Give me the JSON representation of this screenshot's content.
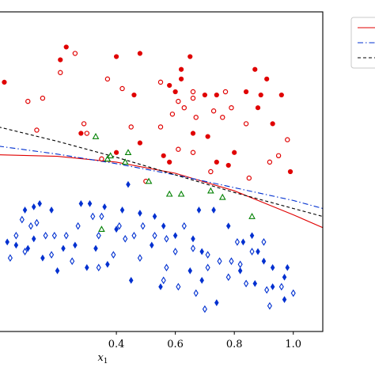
{
  "chart_data": {
    "type": "scatter",
    "title": "",
    "xlabel": "x",
    "xlabel_subscript": "1",
    "xlim": [
      0.0,
      1.1
    ],
    "ylim": [
      0.0,
      1.0
    ],
    "x_ticks": [
      0.4,
      0.6,
      0.8,
      1.0
    ],
    "x_tick_labels": [
      "0.4",
      "0.6",
      "0.8",
      "1.0"
    ],
    "grid": false,
    "legend_placement": "outside-top-right",
    "series": [
      {
        "marker": "circle-filled",
        "color": "#e00000",
        "points": [
          [
            0.23,
            0.89
          ],
          [
            0.21,
            0.85
          ],
          [
            0.02,
            0.78
          ],
          [
            0.4,
            0.86
          ],
          [
            0.48,
            0.87
          ],
          [
            0.62,
            0.82
          ],
          [
            0.65,
            0.86
          ],
          [
            0.91,
            0.79
          ],
          [
            0.87,
            0.82
          ],
          [
            0.84,
            0.75
          ],
          [
            0.96,
            0.74
          ],
          [
            0.58,
            0.77
          ],
          [
            0.6,
            0.75
          ],
          [
            0.62,
            0.79
          ],
          [
            0.46,
            0.74
          ],
          [
            0.74,
            0.74
          ],
          [
            0.7,
            0.74
          ],
          [
            0.88,
            0.7
          ],
          [
            0.89,
            0.74
          ],
          [
            0.93,
            0.65
          ],
          [
            0.66,
            0.62
          ],
          [
            0.48,
            0.59
          ],
          [
            0.28,
            0.62
          ],
          [
            0.4,
            0.56
          ],
          [
            0.56,
            0.55
          ],
          [
            0.58,
            0.53
          ],
          [
            0.74,
            0.53
          ],
          [
            0.78,
            0.52
          ],
          [
            0.8,
            0.56
          ],
          [
            0.71,
            0.61
          ],
          [
            0.99,
            0.5
          ]
        ]
      },
      {
        "marker": "circle-open",
        "color": "#e00000",
        "points": [
          [
            0.26,
            0.87
          ],
          [
            0.21,
            0.81
          ],
          [
            0.37,
            0.79
          ],
          [
            0.42,
            0.76
          ],
          [
            0.55,
            0.78
          ],
          [
            0.61,
            0.72
          ],
          [
            0.67,
            0.67
          ],
          [
            0.73,
            0.69
          ],
          [
            0.76,
            0.67
          ],
          [
            0.84,
            0.65
          ],
          [
            0.98,
            0.6
          ],
          [
            0.95,
            0.55
          ],
          [
            0.92,
            0.53
          ],
          [
            0.79,
            0.7
          ],
          [
            0.77,
            0.75
          ],
          [
            0.66,
            0.75
          ],
          [
            0.66,
            0.73
          ],
          [
            0.55,
            0.64
          ],
          [
            0.45,
            0.64
          ],
          [
            0.29,
            0.65
          ],
          [
            0.15,
            0.73
          ],
          [
            0.1,
            0.72
          ],
          [
            0.63,
            0.7
          ],
          [
            0.59,
            0.68
          ],
          [
            0.85,
            0.48
          ],
          [
            0.61,
            0.57
          ],
          [
            0.66,
            0.56
          ],
          [
            0.5,
            0.47
          ],
          [
            0.3,
            0.62
          ],
          [
            0.72,
            0.5
          ],
          [
            0.35,
            0.54
          ],
          [
            0.13,
            0.63
          ]
        ]
      },
      {
        "marker": "triangle-open",
        "color": "#008000",
        "points": [
          [
            0.37,
            0.54
          ],
          [
            0.43,
            0.53
          ],
          [
            0.44,
            0.56
          ],
          [
            0.33,
            0.61
          ],
          [
            0.38,
            0.55
          ],
          [
            0.51,
            0.47
          ],
          [
            0.35,
            0.32
          ],
          [
            0.58,
            0.43
          ],
          [
            0.62,
            0.43
          ],
          [
            0.72,
            0.44
          ],
          [
            0.76,
            0.42
          ],
          [
            0.86,
            0.36
          ]
        ]
      },
      {
        "marker": "diamond-filled",
        "color": "#0030d0",
        "points": [
          [
            0.09,
            0.38
          ],
          [
            0.12,
            0.39
          ],
          [
            0.14,
            0.4
          ],
          [
            0.18,
            0.38
          ],
          [
            0.28,
            0.4
          ],
          [
            0.31,
            0.4
          ],
          [
            0.36,
            0.39
          ],
          [
            0.42,
            0.38
          ],
          [
            0.44,
            0.46
          ],
          [
            0.48,
            0.37
          ],
          [
            0.53,
            0.36
          ],
          [
            0.56,
            0.33
          ],
          [
            0.6,
            0.3
          ],
          [
            0.66,
            0.29
          ],
          [
            0.69,
            0.25
          ],
          [
            0.73,
            0.38
          ],
          [
            0.78,
            0.33
          ],
          [
            0.83,
            0.28
          ],
          [
            0.86,
            0.3
          ],
          [
            0.9,
            0.22
          ],
          [
            0.93,
            0.2
          ],
          [
            0.93,
            0.14
          ],
          [
            0.97,
            0.17
          ],
          [
            0.97,
            0.1
          ],
          [
            0.87,
            0.15
          ],
          [
            0.82,
            0.19
          ],
          [
            0.74,
            0.09
          ],
          [
            0.69,
            0.16
          ],
          [
            0.65,
            0.19
          ],
          [
            0.55,
            0.14
          ],
          [
            0.52,
            0.27
          ],
          [
            0.45,
            0.16
          ],
          [
            0.37,
            0.21
          ],
          [
            0.3,
            0.2
          ],
          [
            0.26,
            0.27
          ],
          [
            0.22,
            0.26
          ],
          [
            0.2,
            0.19
          ],
          [
            0.15,
            0.23
          ],
          [
            0.12,
            0.29
          ],
          [
            0.1,
            0.26
          ],
          [
            0.06,
            0.27
          ],
          [
            0.03,
            0.28
          ],
          [
            0.98,
            0.2
          ],
          [
            0.79,
            0.22
          ],
          [
            0.68,
            0.38
          ],
          [
            0.88,
            0.25
          ],
          [
            0.4,
            0.32
          ],
          [
            0.33,
            0.26
          ]
        ]
      },
      {
        "marker": "diamond-open",
        "color": "#0030d0",
        "points": [
          [
            0.08,
            0.35
          ],
          [
            0.11,
            0.33
          ],
          [
            0.13,
            0.34
          ],
          [
            0.16,
            0.3
          ],
          [
            0.19,
            0.3
          ],
          [
            0.23,
            0.3
          ],
          [
            0.27,
            0.33
          ],
          [
            0.32,
            0.36
          ],
          [
            0.35,
            0.36
          ],
          [
            0.41,
            0.33
          ],
          [
            0.46,
            0.3
          ],
          [
            0.49,
            0.33
          ],
          [
            0.53,
            0.3
          ],
          [
            0.57,
            0.29
          ],
          [
            0.63,
            0.33
          ],
          [
            0.66,
            0.26
          ],
          [
            0.71,
            0.24
          ],
          [
            0.75,
            0.22
          ],
          [
            0.79,
            0.22
          ],
          [
            0.82,
            0.21
          ],
          [
            0.86,
            0.25
          ],
          [
            0.9,
            0.28
          ],
          [
            0.96,
            0.14
          ],
          [
            1.0,
            0.12
          ],
          [
            0.92,
            0.08
          ],
          [
            0.7,
            0.07
          ],
          [
            0.61,
            0.14
          ],
          [
            0.57,
            0.2
          ],
          [
            0.48,
            0.23
          ],
          [
            0.39,
            0.24
          ],
          [
            0.34,
            0.2
          ],
          [
            0.25,
            0.22
          ],
          [
            0.18,
            0.24
          ],
          [
            0.09,
            0.25
          ],
          [
            0.06,
            0.3
          ],
          [
            0.04,
            0.23
          ],
          [
            0.78,
            0.17
          ],
          [
            0.6,
            0.25
          ],
          [
            0.43,
            0.29
          ],
          [
            0.67,
            0.12
          ],
          [
            0.84,
            0.15
          ],
          [
            0.71,
            0.2
          ],
          [
            0.81,
            0.28
          ],
          [
            0.91,
            0.13
          ],
          [
            0.56,
            0.16
          ],
          [
            0.34,
            0.3
          ]
        ]
      }
    ],
    "boundaries": [
      {
        "style": "solid",
        "color": "#e00000",
        "x": [
          0.0,
          0.2,
          0.4,
          0.6,
          0.8,
          1.0,
          1.1
        ],
        "y": [
          0.553,
          0.548,
          0.53,
          0.495,
          0.44,
          0.365,
          0.325
        ]
      },
      {
        "style": "dashdot",
        "color": "#0030d0",
        "x": [
          0.0,
          0.2,
          0.4,
          0.6,
          0.8,
          1.0,
          1.1
        ],
        "y": [
          0.58,
          0.555,
          0.525,
          0.49,
          0.45,
          0.41,
          0.385
        ]
      },
      {
        "style": "dashed",
        "color": "#000000",
        "x": [
          0.0,
          0.2,
          0.4,
          0.6,
          0.8,
          1.0,
          1.1
        ],
        "y": [
          0.64,
          0.595,
          0.545,
          0.49,
          0.435,
          0.385,
          0.36
        ]
      }
    ]
  }
}
